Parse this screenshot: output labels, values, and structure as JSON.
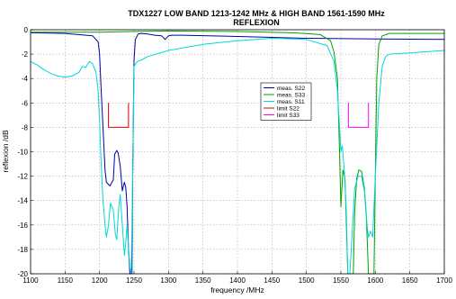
{
  "chart_data": {
    "type": "line",
    "title": "TDX1227 LOW BAND 1213-1242 MHz & HIGH BAND 1561-1590 MHz",
    "subtitle": "REFLEXION",
    "xlabel": "frequency /MHz",
    "ylabel": "reflexion /dB",
    "xlim": [
      1100,
      1700
    ],
    "ylim": [
      -20,
      0
    ],
    "xticks": [
      1100,
      1150,
      1200,
      1250,
      1300,
      1350,
      1400,
      1450,
      1500,
      1550,
      1600,
      1650,
      1700
    ],
    "yticks": [
      0,
      -2,
      -4,
      -6,
      -8,
      -10,
      -12,
      -14,
      -16,
      -18,
      -20
    ],
    "grid": true,
    "legend_position": "center-right",
    "series": [
      {
        "name": "meas.  S22",
        "color": "#0000a8",
        "x": [
          1100,
          1150,
          1190,
          1198,
          1200,
          1202,
          1205,
          1208,
          1210,
          1215,
          1220,
          1222,
          1225,
          1227,
          1230,
          1233,
          1236,
          1238,
          1240,
          1242,
          1244,
          1246,
          1247,
          1248,
          1250,
          1252,
          1256,
          1260,
          1270,
          1280,
          1290,
          1295,
          1300,
          1305,
          1320,
          1400,
          1500,
          1600,
          1700
        ],
        "y": [
          -0.25,
          -0.3,
          -0.5,
          -1.0,
          -2.0,
          -4.5,
          -8.0,
          -11.5,
          -12.5,
          -12.8,
          -12.3,
          -10.2,
          -9.9,
          -10.1,
          -11.2,
          -13.2,
          -12.5,
          -12.9,
          -14.5,
          -18.0,
          -20.0,
          -20.0,
          -20.0,
          -12.0,
          -2.5,
          -0.8,
          -0.35,
          -0.3,
          -0.35,
          -0.45,
          -0.5,
          -0.8,
          -0.5,
          -0.45,
          -0.45,
          -0.55,
          -0.7,
          -0.75,
          -0.8
        ]
      },
      {
        "name": "meas.  S33",
        "color": "#00a000",
        "x": [
          1100,
          1200,
          1300,
          1400,
          1480,
          1520,
          1535,
          1540,
          1545,
          1548,
          1550,
          1553,
          1556,
          1558,
          1560,
          1565,
          1568,
          1570,
          1573,
          1576,
          1580,
          1584,
          1587,
          1590,
          1592,
          1594,
          1596,
          1598,
          1600,
          1602,
          1605,
          1610,
          1620,
          1650,
          1700
        ],
        "y": [
          -0.2,
          -0.2,
          -0.1,
          -0.15,
          -0.25,
          -0.4,
          -0.9,
          -1.8,
          -4.0,
          -10.0,
          -14.5,
          -11.5,
          -12.2,
          -16.0,
          -20.0,
          -20.0,
          -20.0,
          -15.0,
          -12.2,
          -11.5,
          -11.6,
          -13.0,
          -15.5,
          -20.0,
          -20.0,
          -20.0,
          -20.0,
          -20.0,
          -12.0,
          -4.0,
          -1.2,
          -0.5,
          -0.3,
          -0.3,
          -0.3
        ]
      },
      {
        "name": "meas.  S11",
        "color": "#00d8d8",
        "x": [
          1100,
          1110,
          1120,
          1130,
          1140,
          1150,
          1160,
          1170,
          1175,
          1180,
          1185,
          1190,
          1195,
          1198,
          1200,
          1202,
          1205,
          1208,
          1210,
          1213,
          1216,
          1220,
          1223,
          1225,
          1228,
          1230,
          1233,
          1236,
          1238,
          1240,
          1242,
          1244,
          1246,
          1248,
          1250,
          1255,
          1260,
          1270,
          1300,
          1350,
          1400,
          1450,
          1500,
          1530,
          1540,
          1545,
          1548,
          1550,
          1552,
          1555,
          1558,
          1560,
          1563,
          1566,
          1570,
          1575,
          1580,
          1585,
          1588,
          1590,
          1593,
          1596,
          1600,
          1605,
          1610,
          1615,
          1620,
          1650,
          1700
        ],
        "y": [
          -2.6,
          -2.9,
          -3.3,
          -3.6,
          -3.8,
          -3.9,
          -3.8,
          -3.5,
          -3.0,
          -3.1,
          -2.6,
          -2.8,
          -3.5,
          -5.0,
          -7.5,
          -10.5,
          -14.0,
          -16.0,
          -17.0,
          -16.0,
          -14.2,
          -14.8,
          -16.8,
          -17.2,
          -14.5,
          -13.5,
          -16.0,
          -18.5,
          -17.5,
          -16.0,
          -17.8,
          -19.5,
          -20.0,
          -12.0,
          -3.0,
          -2.6,
          -2.5,
          -2.2,
          -1.7,
          -1.2,
          -0.9,
          -0.7,
          -0.8,
          -1.3,
          -2.6,
          -5.0,
          -8.0,
          -10.0,
          -9.5,
          -11.5,
          -15.0,
          -20.0,
          -20.0,
          -17.0,
          -13.0,
          -12.0,
          -12.0,
          -13.5,
          -16.0,
          -17.0,
          -16.5,
          -17.0,
          -12.0,
          -6.0,
          -3.0,
          -2.2,
          -2.0,
          -1.9,
          -1.7
        ]
      },
      {
        "name": "limit S22",
        "color": "#e00000",
        "x": [
          1213,
          1213,
          1242,
          1242
        ],
        "y": [
          -6,
          -8,
          -8,
          -6
        ]
      },
      {
        "name": "limit S33",
        "color": "#ff00ff",
        "x": [
          1561,
          1561,
          1590,
          1590
        ],
        "y": [
          -6,
          -8,
          -8,
          -6
        ]
      }
    ]
  }
}
